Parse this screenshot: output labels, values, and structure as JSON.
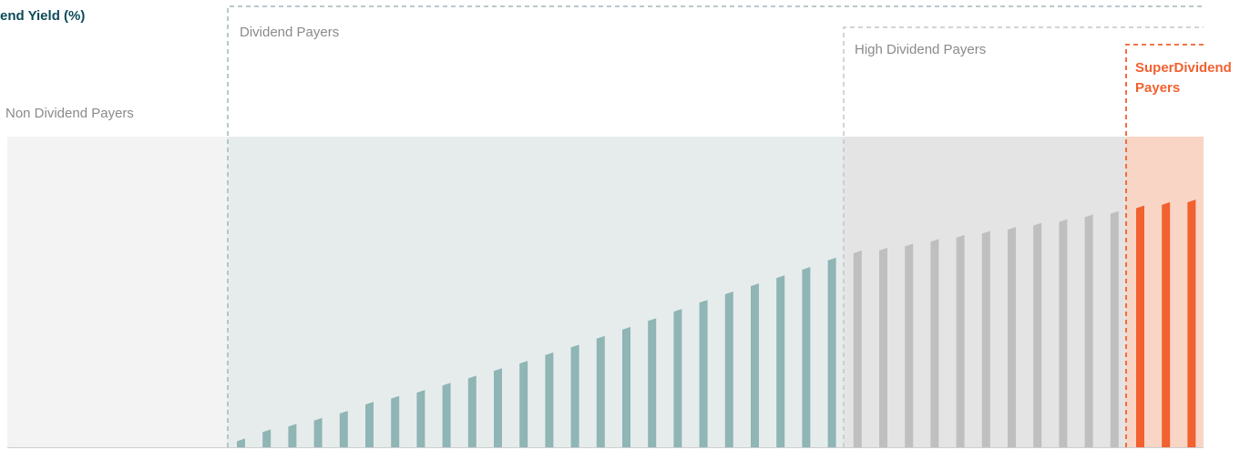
{
  "chart_data": {
    "type": "bar",
    "title": "end Yield (%)",
    "xlabel": "",
    "ylabel": "",
    "ylim": [
      0,
      100
    ],
    "grid": false,
    "zones": [
      {
        "key": "non",
        "label": "Non Dividend Payers",
        "from_bar": null,
        "to_bar": null
      },
      {
        "key": "div",
        "label": "Dividend Payers",
        "from_bar": 0,
        "to_bar": 23
      },
      {
        "key": "high",
        "label": "High Dividend Payers",
        "from_bar": 24,
        "to_bar": 34
      },
      {
        "key": "super",
        "label_lines": [
          "SuperDividend",
          "Payers"
        ],
        "from_bar": 35,
        "to_bar": 37
      }
    ],
    "values": [
      2.4,
      5.3,
      7.1,
      9.0,
      11.3,
      14.2,
      16.1,
      18.0,
      20.3,
      22.6,
      25.0,
      27.4,
      30.1,
      32.6,
      35.4,
      38.3,
      41.1,
      44.1,
      47.0,
      49.7,
      52.3,
      54.9,
      57.6,
      60.6,
      62.9,
      63.8,
      65.1,
      66.6,
      67.9,
      69.2,
      70.5,
      71.8,
      73.0,
      74.5,
      75.6,
      77.4,
      78.5,
      79.3
    ],
    "colors": {
      "non_bg": "#f3f3f3",
      "div_bg": "#e6ecec",
      "div_bar": "#8fb5b4",
      "high_bg": "#e4e4e4",
      "high_bar": "#bfbfbf",
      "super_bg": "#f8d5c5",
      "super_bar": "#f26130",
      "frame_dash": "#9fb9b8",
      "high_dash": "#c5c5c5",
      "super_dash": "#f26130",
      "label_gray": "#8a8a8a",
      "title": "#0d4a5a"
    }
  }
}
